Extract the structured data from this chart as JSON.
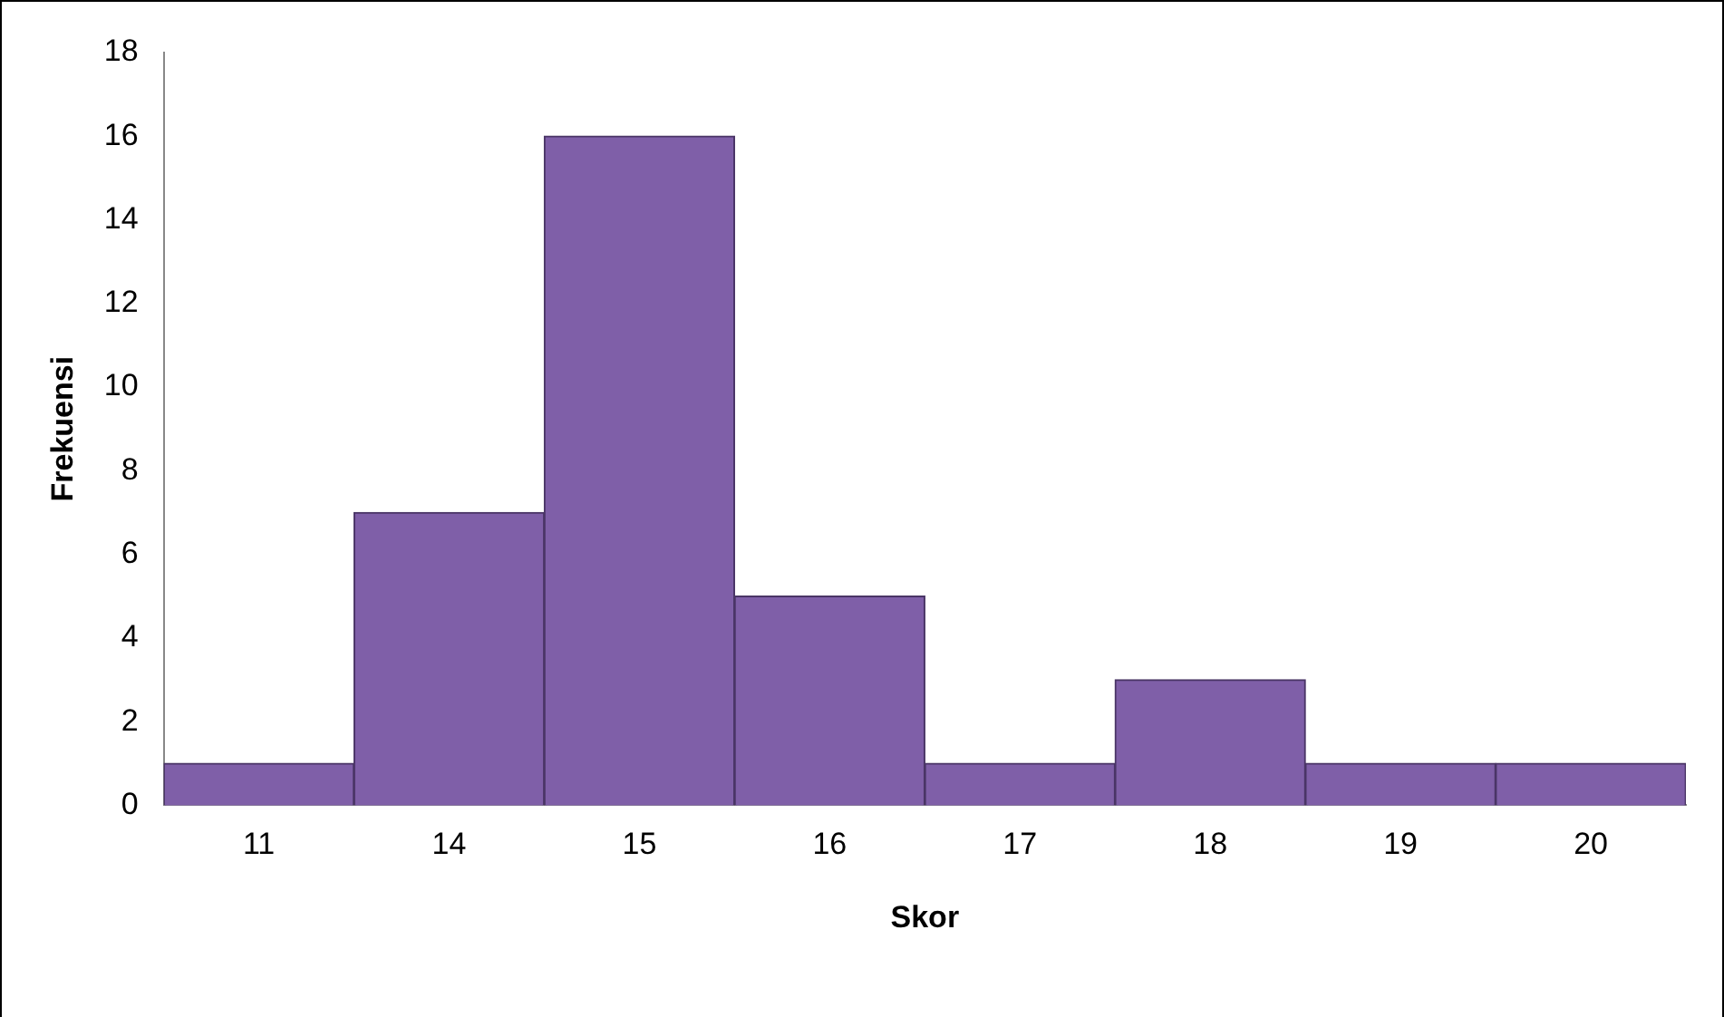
{
  "chart_data": {
    "type": "bar",
    "xlabel": "Skor",
    "ylabel": "Frekuensi",
    "categories": [
      "11",
      "14",
      "15",
      "16",
      "17",
      "18",
      "19",
      "20"
    ],
    "values": [
      1,
      7,
      16,
      5,
      1,
      3,
      1,
      1
    ],
    "color": "#7f5fa8",
    "ylim": [
      0,
      18
    ],
    "yticks": [
      0,
      2,
      4,
      6,
      8,
      10,
      12,
      14,
      16,
      18
    ],
    "grid": false,
    "legend": false
  }
}
